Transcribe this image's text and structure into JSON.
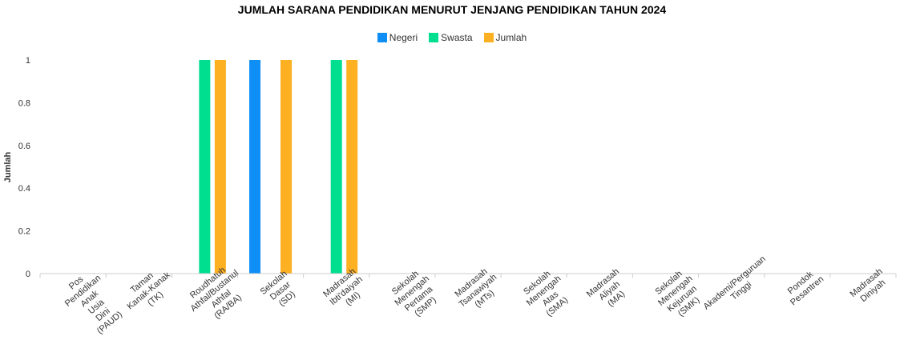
{
  "chart_data": {
    "type": "bar",
    "title": "JUMLAH SARANA PENDIDIKAN MENURUT JENJANG PENDIDIKAN TAHUN 2024",
    "xlabel": "",
    "ylabel": "Jumlah",
    "ylim": [
      0,
      1
    ],
    "yticks": [
      "0",
      "0.2",
      "0.4",
      "0.6",
      "0.8",
      "1"
    ],
    "legend_position": "top-center",
    "categories": [
      [
        "Pos",
        "Pendidikan",
        "Anak",
        "Usia",
        "Dini",
        "(PAUD)"
      ],
      [
        "Taman",
        "Kanak-Kanak",
        "(TK)"
      ],
      [
        "Roudhatuh",
        "Athfal/Bustanul",
        "Athfal",
        "(RA/BA)"
      ],
      [
        "Sekolah",
        "Dasar",
        "(SD)"
      ],
      [
        "Madrasah",
        "Ibti'daiyah",
        "(MI)"
      ],
      [
        "Sekolah",
        "Menengah",
        "Pertama",
        "(SMP)"
      ],
      [
        "Madrasah",
        "Tsanawiyah",
        "(MTs)"
      ],
      [
        "Sekolah",
        "Menengah",
        "Atas",
        "(SMA)"
      ],
      [
        "Madrasah",
        "Aliyah",
        "(MA)"
      ],
      [
        "Sekolah",
        "Menengah",
        "Kejuruan",
        "(SMK)"
      ],
      [
        "Akademi/Perguruan",
        "Tinggi"
      ],
      [
        "Pondok",
        "Pesantren"
      ],
      [
        "Madrasah",
        "Diniyah"
      ]
    ],
    "series": [
      {
        "name": "Negeri",
        "color": "#0f8ff5",
        "values": [
          0,
          0,
          0,
          1,
          0,
          0,
          0,
          0,
          0,
          0,
          0,
          0,
          0
        ]
      },
      {
        "name": "Swasta",
        "color": "#00de8f",
        "values": [
          0,
          0,
          1,
          0,
          1,
          0,
          0,
          0,
          0,
          0,
          0,
          0,
          0
        ]
      },
      {
        "name": "Jumlah",
        "color": "#fdb021",
        "values": [
          0,
          0,
          1,
          1,
          1,
          0,
          0,
          0,
          0,
          0,
          0,
          0,
          0
        ]
      }
    ]
  }
}
